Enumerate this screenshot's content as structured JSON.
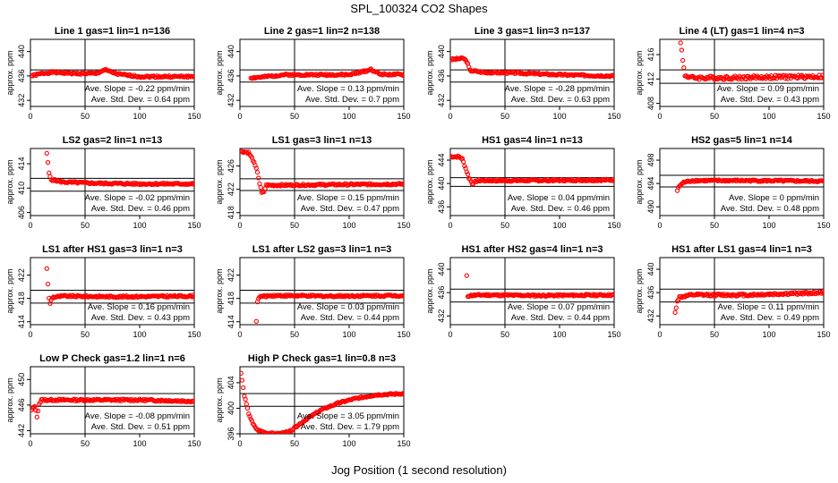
{
  "figure": {
    "title": "SPL_100324  CO2 Shapes",
    "xlabel": "Jog Position (1 second resolution)",
    "ylabel": "approx. ppm",
    "slope_prefix": "Ave. Slope = ",
    "slope_unit": " ppm/min",
    "sd_prefix": "Ave. Std. Dev. = ",
    "sd_unit": " ppm",
    "point_color": "#ff0000"
  },
  "chart_data": [
    {
      "type": "scatter",
      "title": "Line 1 gas=1 lin=1 n=136",
      "xlim": [
        0,
        150
      ],
      "xticks": [
        0,
        50,
        100,
        150
      ],
      "ylim": [
        431,
        442
      ],
      "yticks": [
        432,
        436,
        440
      ],
      "hlines": [
        437.0,
        435.0
      ],
      "vline": 50,
      "slope": "-0.22",
      "sd": "0.64",
      "shape": [
        [
          1,
          436.0
        ],
        [
          10,
          436.4
        ],
        [
          20,
          436.6
        ],
        [
          40,
          436.4
        ],
        [
          60,
          436.4
        ],
        [
          68,
          437.0
        ],
        [
          80,
          436.3
        ],
        [
          100,
          435.9
        ],
        [
          120,
          435.9
        ],
        [
          150,
          435.9
        ]
      ],
      "noise": 0.15,
      "seed": 1
    },
    {
      "type": "scatter",
      "title": "Line 2 gas=1 lin=2 n=138",
      "xlim": [
        0,
        150
      ],
      "xticks": [
        0,
        50,
        100,
        150
      ],
      "ylim": [
        431,
        442
      ],
      "yticks": [
        432,
        436,
        440
      ],
      "hlines": [
        437.0,
        435.0
      ],
      "vline": 50,
      "slope": "0.13",
      "sd": "0.7",
      "shape": [
        [
          10,
          435.7
        ],
        [
          20,
          435.8
        ],
        [
          40,
          436.2
        ],
        [
          100,
          436.2
        ],
        [
          115,
          436.8
        ],
        [
          120,
          437.1
        ],
        [
          128,
          436.3
        ],
        [
          150,
          436.2
        ]
      ],
      "noise": 0.15,
      "seed": 2
    },
    {
      "type": "scatter",
      "title": "Line 3 gas=1 lin=3 n=137",
      "xlim": [
        0,
        150
      ],
      "xticks": [
        0,
        50,
        100,
        150
      ],
      "ylim": [
        431,
        442
      ],
      "yticks": [
        432,
        436,
        440
      ],
      "hlines": [
        437.0,
        435.0
      ],
      "vline": 50,
      "slope": "-0.28",
      "sd": "0.63",
      "shape": [
        [
          1,
          438.7
        ],
        [
          12,
          438.9
        ],
        [
          15,
          438.4
        ],
        [
          18,
          436.9
        ],
        [
          30,
          436.6
        ],
        [
          60,
          436.5
        ],
        [
          100,
          436.2
        ],
        [
          150,
          436.0
        ]
      ],
      "noise": 0.15,
      "seed": 3
    },
    {
      "type": "scatter",
      "title": "Line 4 (LT) gas=1 lin=4 n=3",
      "xlim": [
        0,
        150
      ],
      "xticks": [
        0,
        50,
        100,
        150
      ],
      "ylim": [
        407.5,
        418.5
      ],
      "yticks": [
        408,
        412,
        416
      ],
      "hlines": [
        413.5,
        411.3
      ],
      "vline": 50,
      "slope": "0.09",
      "sd": "0.43",
      "shape": [
        [
          19,
          418.2
        ],
        [
          21,
          415.0
        ],
        [
          23,
          412.6
        ],
        [
          30,
          412.2
        ],
        [
          60,
          412.2
        ],
        [
          100,
          412.3
        ],
        [
          150,
          412.4
        ]
      ],
      "noise": 0.3,
      "seed": 4
    },
    {
      "type": "scatter",
      "title": "LS2 gas=2 lin=1 n=13",
      "xlim": [
        0,
        150
      ],
      "xticks": [
        0,
        50,
        100,
        150
      ],
      "ylim": [
        405.5,
        416.5
      ],
      "yticks": [
        406,
        410,
        414
      ],
      "hlines": [
        411.6,
        409.5
      ],
      "vline": 50,
      "slope": "-0.02",
      "sd": "0.46",
      "shape": [
        [
          15,
          415.6
        ],
        [
          16,
          414.2
        ],
        [
          17,
          412.4
        ],
        [
          19,
          411.4
        ],
        [
          30,
          411.0
        ],
        [
          60,
          410.8
        ],
        [
          100,
          410.7
        ],
        [
          150,
          410.7
        ]
      ],
      "noise": 0.15,
      "seed": 5
    },
    {
      "type": "scatter",
      "title": "LS1 gas=3 lin=1 n=13",
      "xlim": [
        0,
        150
      ],
      "xticks": [
        0,
        50,
        100,
        150
      ],
      "ylim": [
        417.5,
        429
      ],
      "yticks": [
        418,
        422,
        426
      ],
      "hlines": [
        423.8,
        421.8
      ],
      "vline": 50,
      "slope": "0.15",
      "sd": "0.47",
      "shape": [
        [
          1,
          428.5
        ],
        [
          8,
          428.3
        ],
        [
          12,
          427.0
        ],
        [
          16,
          425.0
        ],
        [
          18,
          423.0
        ],
        [
          20,
          421.4
        ],
        [
          22,
          421.6
        ],
        [
          24,
          422.7
        ],
        [
          30,
          422.7
        ],
        [
          80,
          422.8
        ],
        [
          150,
          422.9
        ]
      ],
      "noise": 0.15,
      "seed": 6
    },
    {
      "type": "scatter",
      "title": "HS1 gas=4 lin=1 n=13",
      "xlim": [
        0,
        150
      ],
      "xticks": [
        0,
        50,
        100,
        150
      ],
      "ylim": [
        434.5,
        446
      ],
      "yticks": [
        436,
        440,
        444
      ],
      "hlines": [
        441.0,
        439.5
      ],
      "vline": 50,
      "slope": "0.04",
      "sd": "0.46",
      "shape": [
        [
          1,
          444.6
        ],
        [
          8,
          444.6
        ],
        [
          11,
          444.2
        ],
        [
          14,
          442.6
        ],
        [
          17,
          441.0
        ],
        [
          20,
          440.0
        ],
        [
          25,
          440.5
        ],
        [
          60,
          440.5
        ],
        [
          150,
          440.6
        ]
      ],
      "noise": 0.15,
      "seed": 7
    },
    {
      "type": "scatter",
      "title": "HS2 gas=5 lin=1 n=14",
      "xlim": [
        0,
        150
      ],
      "xticks": [
        0,
        50,
        100,
        150
      ],
      "ylim": [
        488.5,
        500
      ],
      "yticks": [
        490,
        494,
        498
      ],
      "hlines": [
        495.4,
        493.4
      ],
      "vline": 50,
      "slope": "0",
      "sd": "0.48",
      "shape": [
        [
          16,
          492.8
        ],
        [
          18,
          493.6
        ],
        [
          22,
          494.2
        ],
        [
          30,
          494.5
        ],
        [
          80,
          494.5
        ],
        [
          150,
          494.4
        ]
      ],
      "noise": 0.15,
      "seed": 8
    },
    {
      "type": "scatter",
      "title": "LS1 after HS1 gas=3 lin=1 n=3",
      "xlim": [
        0,
        150
      ],
      "xticks": [
        0,
        50,
        100,
        150
      ],
      "ylim": [
        413.5,
        425
      ],
      "yticks": [
        414,
        418,
        422
      ],
      "hlines": [
        419.4,
        417.2
      ],
      "vline": 50,
      "slope": "0.16",
      "sd": "0.43",
      "shape": [
        [
          15,
          423.2
        ],
        [
          16,
          420.4
        ],
        [
          17,
          418.0
        ],
        [
          18,
          417.2
        ],
        [
          20,
          418.2
        ],
        [
          30,
          418.4
        ],
        [
          80,
          418.3
        ],
        [
          150,
          418.4
        ]
      ],
      "noise": 0.15,
      "seed": 9
    },
    {
      "type": "scatter",
      "title": "LS1 after LS2 gas=3 lin=1 n=3",
      "xlim": [
        0,
        150
      ],
      "xticks": [
        0,
        50,
        100,
        150
      ],
      "ylim": [
        413.5,
        425
      ],
      "yticks": [
        414,
        418,
        422
      ],
      "hlines": [
        419.4,
        417.2
      ],
      "vline": 50,
      "slope": "0.03",
      "sd": "0.44",
      "shape": [
        [
          15,
          414.2
        ],
        [
          16,
          417.4
        ],
        [
          18,
          418.3
        ],
        [
          30,
          418.5
        ],
        [
          80,
          418.4
        ],
        [
          150,
          418.5
        ]
      ],
      "noise": 0.15,
      "seed": 10
    },
    {
      "type": "scatter",
      "title": "HS1 after HS2 gas=4 lin=1 n=3",
      "xlim": [
        0,
        150
      ],
      "xticks": [
        0,
        50,
        100,
        150
      ],
      "ylim": [
        430.5,
        442
      ],
      "yticks": [
        432,
        436,
        440
      ],
      "hlines": [
        436.6,
        434.4
      ],
      "vline": 50,
      "slope": "0.07",
      "sd": "0.44",
      "shape": [
        [
          15,
          438.8
        ],
        [
          16,
          435.4
        ],
        [
          18,
          435.5
        ],
        [
          30,
          435.6
        ],
        [
          80,
          435.5
        ],
        [
          150,
          435.6
        ]
      ],
      "noise": 0.15,
      "seed": 11
    },
    {
      "type": "scatter",
      "title": "HS1 after LS1 gas=4 lin=1 n=3",
      "xlim": [
        0,
        150
      ],
      "xticks": [
        0,
        50,
        100,
        150
      ],
      "ylim": [
        430.5,
        442
      ],
      "yticks": [
        432,
        436,
        440
      ],
      "hlines": [
        436.6,
        434.4
      ],
      "vline": 50,
      "slope": "0.11",
      "sd": "0.49",
      "shape": [
        [
          14,
          432.5
        ],
        [
          16,
          434.6
        ],
        [
          18,
          435.2
        ],
        [
          30,
          435.6
        ],
        [
          80,
          435.6
        ],
        [
          150,
          436.0
        ]
      ],
      "noise": 0.2,
      "seed": 12
    },
    {
      "type": "scatter",
      "title": "Low P Check gas=1.2 lin=1 n=6",
      "xlim": [
        0,
        150
      ],
      "xticks": [
        0,
        50,
        100,
        150
      ],
      "ylim": [
        441.5,
        452
      ],
      "yticks": [
        442,
        446,
        450
      ],
      "hlines": [
        447.8,
        445.8
      ],
      "vline": 50,
      "slope": "-0.08",
      "sd": "0.51",
      "shape": [
        [
          1,
          445.2
        ],
        [
          4,
          445.9
        ],
        [
          6,
          444.2
        ],
        [
          8,
          446.2
        ],
        [
          10,
          446.8
        ],
        [
          40,
          446.8
        ],
        [
          100,
          446.8
        ],
        [
          150,
          446.6
        ]
      ],
      "noise": 0.15,
      "seed": 13
    },
    {
      "type": "scatter",
      "title": "High P Check gas=1 lin=0.8 n=3",
      "xlim": [
        0,
        150
      ],
      "xticks": [
        0,
        50,
        100,
        150
      ],
      "ylim": [
        396,
        406.5
      ],
      "yticks": [
        396,
        400,
        404
      ],
      "hlines": [
        402.3,
        400.3
      ],
      "vline": 50,
      "slope": "3.05",
      "sd": "1.79",
      "shape": [
        [
          1,
          405.5
        ],
        [
          4,
          402.0
        ],
        [
          8,
          399.2
        ],
        [
          12,
          397.5
        ],
        [
          16,
          396.6
        ],
        [
          25,
          396.1
        ],
        [
          35,
          396.0
        ],
        [
          45,
          396.3
        ],
        [
          60,
          398.2
        ],
        [
          75,
          399.8
        ],
        [
          90,
          400.8
        ],
        [
          105,
          401.5
        ],
        [
          125,
          402.1
        ],
        [
          150,
          402.3
        ]
      ],
      "noise": 0.12,
      "seed": 14
    }
  ]
}
